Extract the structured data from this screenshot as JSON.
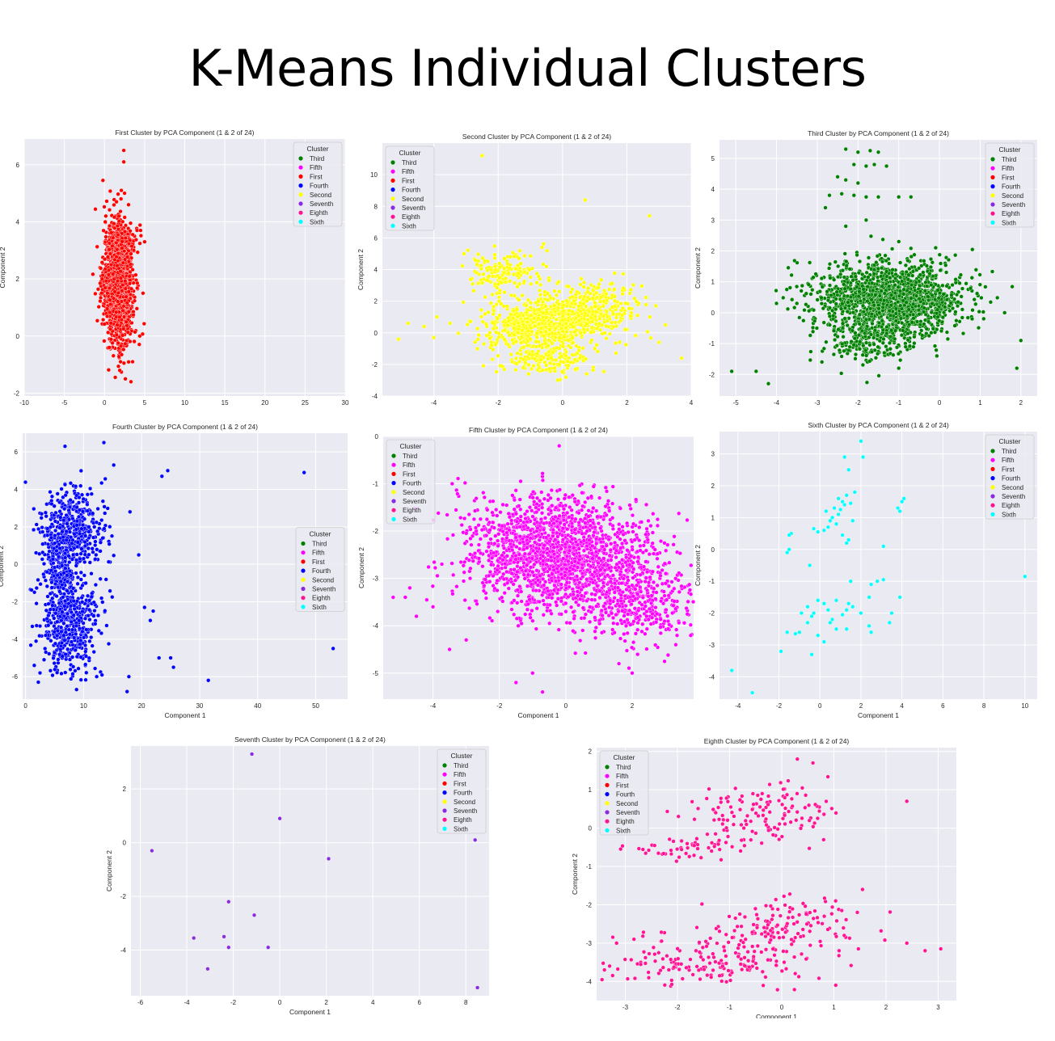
{
  "page_title": "K-Means Individual Clusters",
  "legend": {
    "title": "Cluster",
    "entries": [
      {
        "name": "Third",
        "color": "#008000"
      },
      {
        "name": "Fifth",
        "color": "#ff00ff"
      },
      {
        "name": "First",
        "color": "#ff0000"
      },
      {
        "name": "Fourth",
        "color": "#0000ff"
      },
      {
        "name": "Second",
        "color": "#ffff00"
      },
      {
        "name": "Seventh",
        "color": "#8a2be2"
      },
      {
        "name": "Eighth",
        "color": "#ff1493"
      },
      {
        "name": "Sixth",
        "color": "#00ffff"
      }
    ]
  },
  "chart_data": [
    {
      "type": "scatter",
      "title": "First Cluster by PCA Component (1 & 2 of 24)",
      "xlabel": "Component 1",
      "ylabel": "Component 2",
      "xlim": [
        -10,
        30
      ],
      "ylim": [
        -2.1,
        6.9
      ],
      "xticks": [
        -10,
        -5,
        0,
        5,
        10,
        15,
        20,
        25,
        30
      ],
      "yticks": [
        -2,
        0,
        2,
        4,
        6
      ],
      "grid": true,
      "legend_position": "top-right",
      "color": "#ff0000",
      "blobs": [
        {
          "cx": 1.7,
          "cy": 1.8,
          "sx": 0.9,
          "sy": 1.0,
          "n": 1500
        },
        {
          "cx": 2.2,
          "cy": 3.2,
          "sx": 0.9,
          "sy": 0.35,
          "n": 150
        }
      ],
      "points": [
        [
          2.4,
          6.5
        ],
        [
          2.4,
          6.1
        ],
        [
          2.1,
          5.1
        ],
        [
          2.5,
          5.0
        ],
        [
          -0.2,
          5.45
        ],
        [
          1.5,
          4.7
        ],
        [
          3.0,
          4.6
        ],
        [
          1.8,
          4.2
        ],
        [
          0.1,
          4.0
        ],
        [
          1.9,
          -1.2
        ],
        [
          2.6,
          -1.5
        ],
        [
          3.3,
          -1.6
        ],
        [
          2.0,
          -0.9
        ],
        [
          3.5,
          -0.9
        ],
        [
          0.6,
          -0.4
        ],
        [
          4.5,
          3.7
        ],
        [
          5.0,
          3.3
        ],
        [
          -0.3,
          2.0
        ],
        [
          4.8,
          1.5
        ]
      ]
    },
    {
      "type": "scatter",
      "title": "Second Cluster by PCA Component (1 & 2 of 24)",
      "xlabel": "Component 1",
      "ylabel": "Component 2",
      "xlim": [
        -5.6,
        4.0
      ],
      "ylim": [
        -4.0,
        12.0
      ],
      "xticks": [
        -4,
        -2,
        0,
        2,
        4
      ],
      "yticks": [
        -4,
        -2,
        0,
        2,
        4,
        6,
        8,
        10
      ],
      "grid": true,
      "legend_position": "top-left",
      "color": "#ffff00",
      "blobs": [
        {
          "cx": -0.7,
          "cy": 0.5,
          "sx": 0.9,
          "sy": 0.8,
          "n": 700
        },
        {
          "cx": 1.0,
          "cy": 1.6,
          "sx": 0.7,
          "sy": 0.8,
          "n": 300
        },
        {
          "cx": -1.8,
          "cy": 3.8,
          "sx": 0.6,
          "sy": 0.7,
          "n": 160
        },
        {
          "cx": -0.5,
          "cy": -1.8,
          "sx": 0.8,
          "sy": 0.5,
          "n": 150
        }
      ],
      "points": [
        [
          -2.5,
          11.2
        ],
        [
          0.7,
          8.4
        ],
        [
          2.7,
          7.4
        ],
        [
          -5.1,
          -0.4
        ],
        [
          -4.8,
          0.6
        ],
        [
          -4.3,
          0.4
        ],
        [
          -4.0,
          -0.3
        ],
        [
          -3.9,
          1.0
        ],
        [
          2.9,
          1.7
        ],
        [
          3.2,
          0.5
        ],
        [
          3.7,
          -1.6
        ],
        [
          3.0,
          -0.6
        ]
      ]
    },
    {
      "type": "scatter",
      "title": "Third Cluster by PCA Component (1 & 2 of 24)",
      "xlabel": "Component 1",
      "ylabel": "Component 2",
      "xlim": [
        -5.4,
        2.4
      ],
      "ylim": [
        -2.7,
        5.6
      ],
      "xticks": [
        -5,
        -4,
        -3,
        -2,
        -1,
        0,
        1,
        2
      ],
      "yticks": [
        -2,
        -1,
        0,
        1,
        2,
        3,
        4,
        5
      ],
      "grid": true,
      "legend_position": "top-right",
      "color": "#008000",
      "blobs": [
        {
          "cx": -1.2,
          "cy": 0.4,
          "sx": 0.9,
          "sy": 0.6,
          "n": 1500
        },
        {
          "cx": -1.8,
          "cy": -0.9,
          "sx": 0.6,
          "sy": 0.4,
          "n": 200
        }
      ],
      "points": [
        [
          -2.3,
          5.3
        ],
        [
          -2.0,
          5.2
        ],
        [
          -1.7,
          5.25
        ],
        [
          -1.5,
          5.2
        ],
        [
          -2.1,
          4.8
        ],
        [
          -1.8,
          4.75
        ],
        [
          -1.6,
          4.8
        ],
        [
          -1.3,
          4.75
        ],
        [
          -2.5,
          4.4
        ],
        [
          -2.3,
          4.3
        ],
        [
          -2.0,
          4.2
        ],
        [
          -2.7,
          3.8
        ],
        [
          -2.4,
          3.85
        ],
        [
          -2.1,
          3.8
        ],
        [
          -1.8,
          3.75
        ],
        [
          -1.5,
          3.75
        ],
        [
          -1.0,
          3.75
        ],
        [
          -0.7,
          3.75
        ],
        [
          -2.8,
          3.4
        ],
        [
          -1.8,
          3.0
        ],
        [
          -2.3,
          2.8
        ],
        [
          -5.1,
          -1.9
        ],
        [
          -4.5,
          -1.9
        ],
        [
          -4.2,
          -2.3
        ],
        [
          -4.0,
          0.3
        ],
        [
          -3.5,
          0.3
        ],
        [
          2.0,
          -0.9
        ],
        [
          1.9,
          -1.8
        ],
        [
          1.6,
          0.0
        ],
        [
          -1.0,
          -1.8
        ]
      ]
    },
    {
      "type": "scatter",
      "title": "Fourth Cluster by PCA Component (1 & 2 of 24)",
      "xlabel": "Component 1",
      "ylabel": "Component 2",
      "xlim": [
        -0.5,
        55.5
      ],
      "ylim": [
        -7.2,
        7.0
      ],
      "xticks": [
        0,
        10,
        20,
        30,
        40,
        50
      ],
      "yticks": [
        -6,
        -4,
        -2,
        0,
        2,
        4,
        6
      ],
      "grid": true,
      "legend_position": "center-right",
      "color": "#0000ff",
      "blobs": [
        {
          "cx": 8.0,
          "cy": 1.8,
          "sx": 2.8,
          "sy": 1.2,
          "n": 450
        },
        {
          "cx": 7.5,
          "cy": -3.2,
          "sx": 2.8,
          "sy": 1.3,
          "n": 450
        },
        {
          "cx": 5.8,
          "cy": -1.0,
          "sx": 1.3,
          "sy": 1.6,
          "n": 200
        }
      ],
      "points": [
        [
          6.8,
          6.3
        ],
        [
          13.5,
          6.5
        ],
        [
          15.2,
          5.3
        ],
        [
          23.5,
          4.7
        ],
        [
          24.5,
          5.0
        ],
        [
          48.0,
          4.9
        ],
        [
          53.0,
          -4.5
        ],
        [
          31.5,
          -6.2
        ],
        [
          17.5,
          -6.8
        ],
        [
          23.0,
          -5.0
        ],
        [
          25.0,
          -5.0
        ],
        [
          25.5,
          -5.5
        ],
        [
          17.8,
          -6.0
        ],
        [
          1.5,
          -5.4
        ],
        [
          2.5,
          -5.8
        ],
        [
          21.5,
          -3.0
        ],
        [
          20.5,
          -2.3
        ],
        [
          22.0,
          -2.5
        ],
        [
          18.0,
          2.8
        ],
        [
          19.5,
          0.5
        ]
      ]
    },
    {
      "type": "scatter",
      "title": "Fifth Cluster by PCA Component (1 & 2 of 24)",
      "xlabel": "Component 1",
      "ylabel": "Component 2",
      "xlim": [
        -5.5,
        3.85
      ],
      "ylim": [
        -5.55,
        0.0
      ],
      "xticks": [
        -4,
        -2,
        0,
        2
      ],
      "yticks": [
        -5,
        -4,
        -3,
        -2,
        -1,
        0
      ],
      "grid": true,
      "legend_position": "top-left",
      "color": "#ff00ff",
      "blobs": [
        {
          "cx": -0.5,
          "cy": -2.4,
          "sx": 1.3,
          "sy": 0.6,
          "n": 1400
        },
        {
          "cx": 2.2,
          "cy": -3.6,
          "sx": 0.8,
          "sy": 0.4,
          "n": 300
        },
        {
          "cx": 0.8,
          "cy": -2.8,
          "sx": 1.4,
          "sy": 0.55,
          "n": 500
        }
      ],
      "points": [
        [
          -0.2,
          -0.2
        ],
        [
          -4.7,
          -3.2
        ],
        [
          -5.2,
          -3.4
        ],
        [
          -4.5,
          -3.8
        ],
        [
          -4.0,
          -3.6
        ],
        [
          -1.5,
          -5.2
        ],
        [
          -0.7,
          -5.4
        ],
        [
          -1.0,
          -5.0
        ],
        [
          2.0,
          -5.0
        ],
        [
          1.6,
          -4.8
        ],
        [
          -3.5,
          -4.5
        ],
        [
          -3.0,
          -4.3
        ]
      ]
    },
    {
      "type": "scatter",
      "title": "Sixth Cluster by PCA Component (1 & 2 of 24)",
      "xlabel": "Component 1",
      "ylabel": "Component 2",
      "xlim": [
        -4.9,
        10.6
      ],
      "ylim": [
        -4.7,
        3.7
      ],
      "xticks": [
        -4,
        -2,
        0,
        2,
        4,
        6,
        8,
        10
      ],
      "yticks": [
        -4,
        -3,
        -2,
        -1,
        0,
        1,
        2,
        3
      ],
      "grid": true,
      "legend_position": "top-right",
      "color": "#00ffff",
      "blobs": [],
      "points": [
        [
          2.0,
          3.4
        ],
        [
          1.2,
          2.9
        ],
        [
          2.1,
          2.9
        ],
        [
          1.4,
          2.5
        ],
        [
          1.7,
          1.8
        ],
        [
          1.3,
          1.7
        ],
        [
          0.9,
          1.6
        ],
        [
          1.1,
          1.5
        ],
        [
          1.5,
          1.45
        ],
        [
          1.2,
          1.4
        ],
        [
          0.7,
          1.3
        ],
        [
          1.0,
          1.25
        ],
        [
          0.3,
          1.2
        ],
        [
          0.9,
          1.1
        ],
        [
          0.6,
          1.0
        ],
        [
          0.5,
          0.9
        ],
        [
          0.8,
          0.8
        ],
        [
          0.4,
          0.7
        ],
        [
          1.6,
          0.9
        ],
        [
          0.2,
          0.6
        ],
        [
          -1.4,
          0.5
        ],
        [
          -1.5,
          0.45
        ],
        [
          1.1,
          0.45
        ],
        [
          -0.3,
          0.65
        ],
        [
          -0.1,
          0.55
        ],
        [
          1.4,
          0.3
        ],
        [
          1.3,
          0.2
        ],
        [
          -1.5,
          0.0
        ],
        [
          -1.6,
          -0.1
        ],
        [
          -0.5,
          -0.5
        ],
        [
          3.1,
          0.1
        ],
        [
          4.0,
          1.5
        ],
        [
          4.1,
          1.6
        ],
        [
          3.8,
          1.3
        ],
        [
          3.9,
          1.2
        ],
        [
          10.0,
          -0.85
        ],
        [
          2.5,
          -1.1
        ],
        [
          2.8,
          -1.0
        ],
        [
          3.1,
          -0.95
        ],
        [
          1.5,
          -1.0
        ],
        [
          3.5,
          -2.0
        ],
        [
          3.9,
          -1.5
        ],
        [
          2.4,
          -1.5
        ],
        [
          0.8,
          -1.6
        ],
        [
          -0.1,
          -1.6
        ],
        [
          0.2,
          -1.7
        ],
        [
          0.4,
          -1.9
        ],
        [
          1.4,
          -1.7
        ],
        [
          1.3,
          -1.9
        ],
        [
          1.6,
          -1.8
        ],
        [
          -0.6,
          -1.8
        ],
        [
          -0.4,
          -2.1
        ],
        [
          -0.3,
          -2.0
        ],
        [
          0.6,
          -2.2
        ],
        [
          1.1,
          -2.05
        ],
        [
          0.5,
          -2.3
        ],
        [
          0.8,
          -2.5
        ],
        [
          -0.1,
          -2.7
        ],
        [
          1.3,
          -2.5
        ],
        [
          2.4,
          -2.4
        ],
        [
          2.5,
          -2.6
        ],
        [
          3.4,
          -2.3
        ],
        [
          0.2,
          -2.9
        ],
        [
          -0.6,
          -2.3
        ],
        [
          -1.0,
          -2.6
        ],
        [
          -1.6,
          -2.6
        ],
        [
          -1.2,
          -2.65
        ],
        [
          -1.9,
          -3.2
        ],
        [
          -0.4,
          -3.3
        ],
        [
          -4.3,
          -3.8
        ],
        [
          -3.3,
          -4.5
        ],
        [
          -0.9,
          -2.0
        ],
        [
          2.0,
          -2.0
        ]
      ]
    },
    {
      "type": "scatter",
      "title": "Seventh Cluster by PCA Component (1 & 2 of 24)",
      "xlabel": "Component 1",
      "ylabel": "Component 2",
      "xlim": [
        -6.4,
        9.0
      ],
      "ylim": [
        -5.7,
        3.6
      ],
      "xticks": [
        -6,
        -4,
        -2,
        0,
        2,
        4,
        6,
        8
      ],
      "yticks": [
        -4,
        -2,
        0,
        2
      ],
      "grid": true,
      "legend_position": "top-right",
      "color": "#8a2be2",
      "blobs": [],
      "points": [
        [
          -1.2,
          3.3
        ],
        [
          0.0,
          0.9
        ],
        [
          2.1,
          -0.6
        ],
        [
          -5.5,
          -0.3
        ],
        [
          8.4,
          0.1
        ],
        [
          -2.2,
          -2.2
        ],
        [
          -1.1,
          -2.7
        ],
        [
          -2.4,
          -3.5
        ],
        [
          -3.7,
          -3.55
        ],
        [
          -2.2,
          -3.9
        ],
        [
          -0.5,
          -3.9
        ],
        [
          -3.1,
          -4.7
        ],
        [
          8.5,
          -5.4
        ]
      ]
    },
    {
      "type": "scatter",
      "title": "Eighth Cluster by PCA Component (1 & 2 of 24)",
      "xlabel": "Component 1",
      "ylabel": "Component 2",
      "xlim": [
        -3.55,
        3.35
      ],
      "ylim": [
        -4.5,
        2.1
      ],
      "xticks": [
        -3,
        -2,
        -1,
        0,
        1,
        2,
        3
      ],
      "yticks": [
        -4,
        -3,
        -2,
        -1,
        0,
        1,
        2
      ],
      "grid": true,
      "legend_position": "top-left",
      "color": "#ff1493",
      "blobs": [
        {
          "cx": -0.3,
          "cy": 0.35,
          "sx": 0.75,
          "sy": 0.4,
          "n": 130
        },
        {
          "cx": -1.8,
          "cy": -0.5,
          "sx": 0.6,
          "sy": 0.15,
          "n": 50
        },
        {
          "cx": -1.4,
          "cy": -3.5,
          "sx": 0.9,
          "sy": 0.35,
          "n": 160
        },
        {
          "cx": -0.1,
          "cy": -2.6,
          "sx": 0.75,
          "sy": 0.45,
          "n": 140
        }
      ],
      "points": [
        [
          2.4,
          0.7
        ],
        [
          2.4,
          -3.0
        ],
        [
          2.75,
          -3.2
        ],
        [
          3.05,
          -3.15
        ],
        [
          1.55,
          -1.6
        ],
        [
          1.45,
          -2.2
        ],
        [
          1.2,
          -2.8
        ],
        [
          -3.3,
          -3.6
        ],
        [
          -3.4,
          -3.7
        ],
        [
          0.6,
          1.7
        ],
        [
          0.3,
          1.8
        ],
        [
          1.1,
          -3.2
        ]
      ]
    }
  ]
}
